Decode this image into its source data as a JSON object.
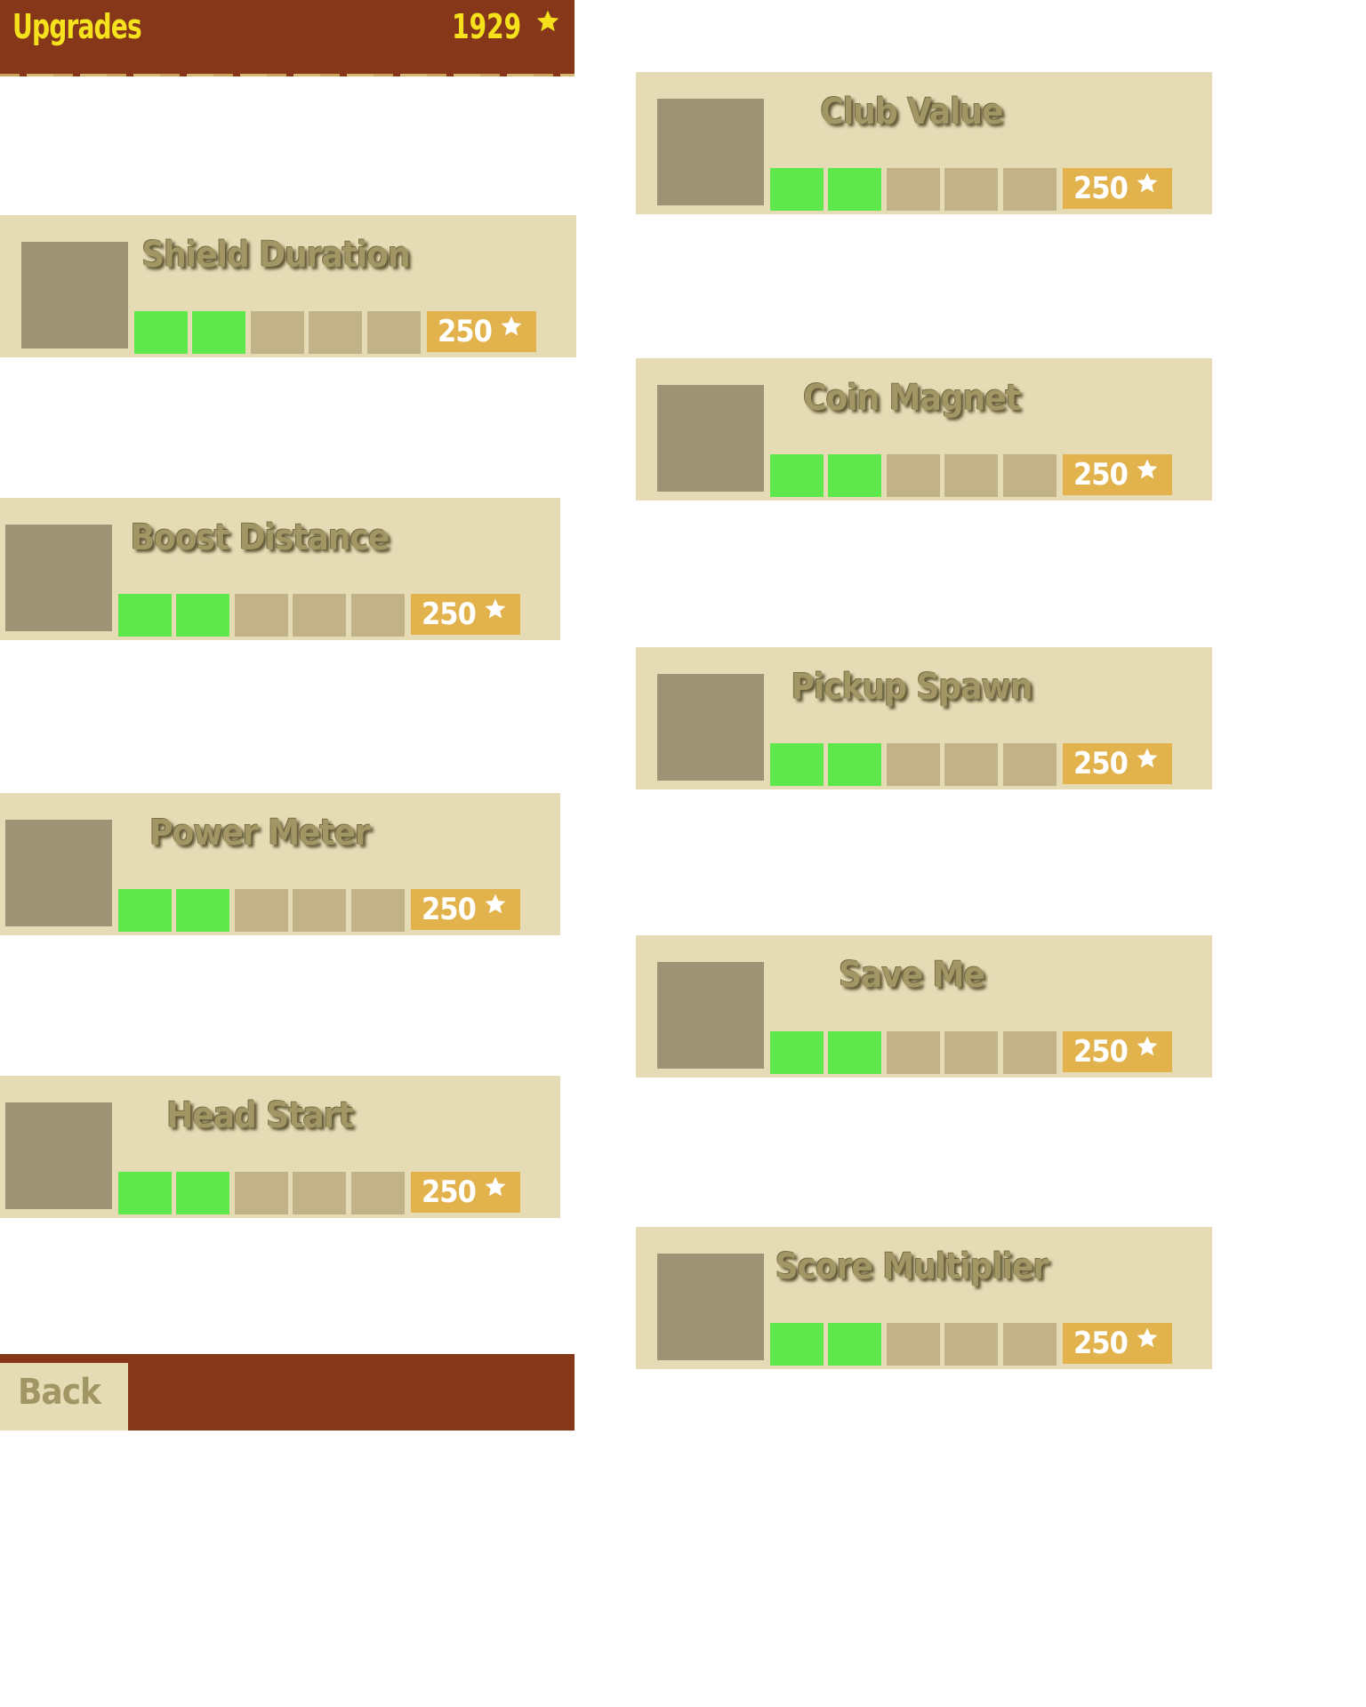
{
  "header": {
    "title": "Upgrades",
    "coins": "1929",
    "coin_icon": "star-icon",
    "background_color": "#86371a",
    "text_color": "#f5e21d"
  },
  "upgrades": [
    {
      "name": "Shield Duration",
      "level": 2,
      "max_level": 5,
      "price": "250"
    },
    {
      "name": "Boost Distance",
      "level": 2,
      "max_level": 5,
      "price": "250"
    },
    {
      "name": "Power Meter",
      "level": 2,
      "max_level": 5,
      "price": "250"
    },
    {
      "name": "Head Start",
      "level": 2,
      "max_level": 5,
      "price": "250"
    },
    {
      "name": "Club Value",
      "level": 2,
      "max_level": 5,
      "price": "250"
    },
    {
      "name": "Coin Magnet",
      "level": 2,
      "max_level": 5,
      "price": "250"
    },
    {
      "name": "Pickup Spawn",
      "level": 2,
      "max_level": 5,
      "price": "250"
    },
    {
      "name": "Save Me",
      "level": 2,
      "max_level": 5,
      "price": "250"
    },
    {
      "name": "Score Multiplier",
      "level": 2,
      "max_level": 5,
      "price": "250"
    }
  ],
  "colors": {
    "card_bg": "#e5dbb5",
    "icon_placeholder": "#9e9475",
    "bar_filled": "#5fe84c",
    "bar_empty": "#c1b387",
    "price_bg": "#e2b24c"
  },
  "footer": {
    "back_label": "Back"
  }
}
